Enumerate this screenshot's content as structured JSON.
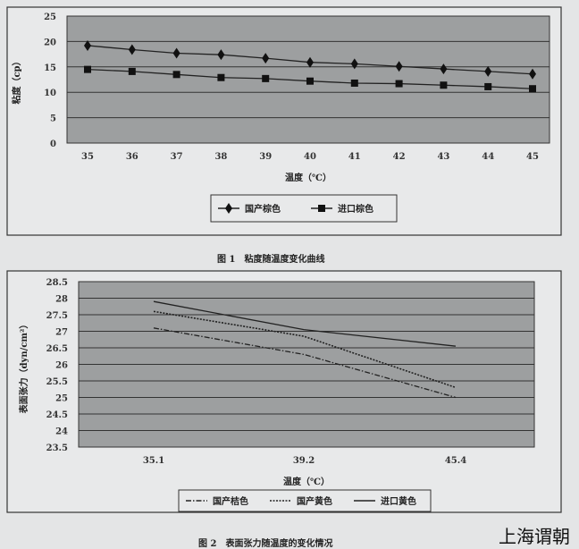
{
  "chart_data": [
    {
      "type": "line",
      "ylabel": "粘度（cp）",
      "xlabel": "温度（℃）",
      "categories": [
        "35",
        "36",
        "37",
        "38",
        "39",
        "40",
        "41",
        "42",
        "43",
        "44",
        "45"
      ],
      "ylim": [
        0,
        25
      ],
      "yticks": [
        "0",
        "5",
        "10",
        "15",
        "20",
        "25"
      ],
      "grid": true,
      "legend": "bottom",
      "series": [
        {
          "name": "国产棕色",
          "marker": "diamond",
          "values": [
            19.2,
            18.4,
            17.7,
            17.4,
            16.7,
            15.9,
            15.6,
            15.1,
            14.6,
            14.1,
            13.6
          ]
        },
        {
          "name": "进口棕色",
          "marker": "square",
          "values": [
            14.5,
            14.1,
            13.5,
            12.9,
            12.7,
            12.2,
            11.8,
            11.7,
            11.4,
            11.1,
            10.7
          ]
        }
      ],
      "caption": "图 1　粘度随温度变化曲线"
    },
    {
      "type": "line",
      "ylabel": "表面张力（dyn/cm²）",
      "xlabel": "温度（℃）",
      "categories": [
        "35.1",
        "39.2",
        "45.4"
      ],
      "ylim": [
        23.5,
        28.5
      ],
      "yticks": [
        "23.5",
        "24",
        "24.5",
        "25",
        "25.5",
        "26",
        "26.5",
        "27",
        "27.5",
        "28",
        "28.5"
      ],
      "grid": true,
      "legend": "bottom",
      "series": [
        {
          "name": "国产桔色",
          "style": "dash-dot",
          "values": [
            27.1,
            26.3,
            25.0
          ]
        },
        {
          "name": "国产黄色",
          "style": "dotted",
          "values": [
            27.6,
            26.85,
            25.3
          ]
        },
        {
          "name": "进口黄色",
          "style": "solid",
          "values": [
            27.9,
            27.05,
            26.55
          ]
        }
      ],
      "caption": "图 2　表面张力随温度的变化情况"
    }
  ],
  "watermark": "上海谓朝"
}
